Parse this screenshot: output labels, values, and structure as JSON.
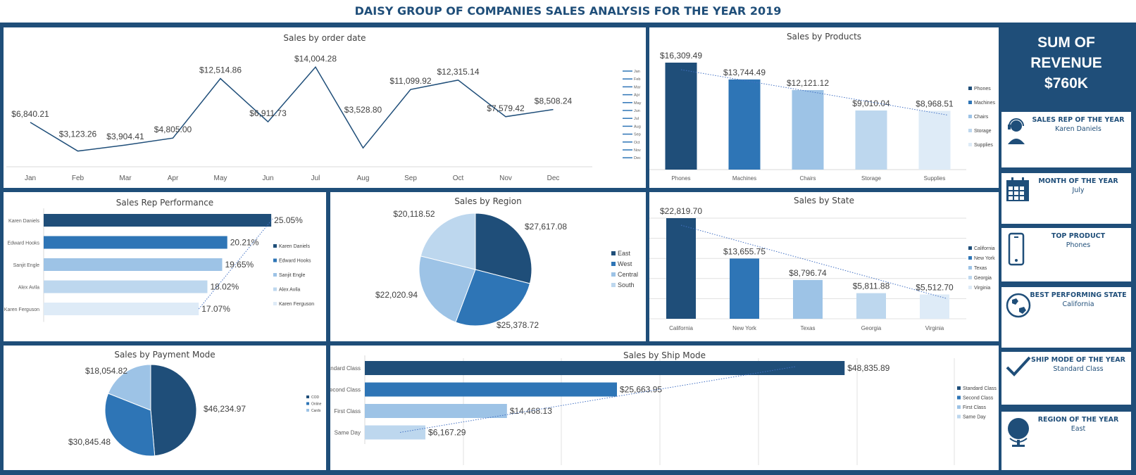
{
  "title": "DAISY GROUP OF COMPANIES SALES ANALYSIS FOR THE YEAR 2019",
  "colors": {
    "c1": "#1f4e79",
    "c2": "#2e75b6",
    "c3": "#9dc3e6",
    "c4": "#bdd7ee",
    "c5": "#deebf7"
  },
  "kpis": {
    "revenue": {
      "line1": "SUM OF",
      "line2": "REVENUE",
      "line3": "$760K"
    },
    "cards": [
      {
        "label": "SALES REP OF THE YEAR",
        "value": "Karen Daniels",
        "icon": "headset-icon"
      },
      {
        "label": "MONTH OF THE YEAR",
        "value": "July",
        "icon": "calendar-icon"
      },
      {
        "label": "TOP PRODUCT",
        "value": "Phones",
        "icon": "phone-icon"
      },
      {
        "label": "BEST PERFORMING STATE",
        "value": "California",
        "icon": "globe-map-icon"
      },
      {
        "label": "SHIP MODE OF THE YEAR",
        "value": "Standard Class",
        "icon": "checkmark-icon"
      },
      {
        "label": "REGION OF THE YEAR",
        "value": "East",
        "icon": "globe-icon"
      }
    ]
  },
  "chart_data": [
    {
      "id": "order-date",
      "type": "line",
      "title": "Sales by order date",
      "categories": [
        "Jan",
        "Feb",
        "Mar",
        "Apr",
        "May",
        "Jun",
        "Jul",
        "Aug",
        "Sep",
        "Oct",
        "Nov",
        "Dec"
      ],
      "values": [
        6840.21,
        3123.26,
        3904.41,
        4805.0,
        12514.86,
        6911.73,
        14004.28,
        3528.8,
        11099.92,
        12315.14,
        7579.42,
        8508.24
      ],
      "labels": [
        "$6,840.21",
        "$3,123.26",
        "$3,904.41",
        "$4,805.00",
        "$12,514.86",
        "$6,911.73",
        "$14,004.28",
        "$3,528.80",
        "$11,099.92",
        "$12,315.14",
        "$7,579.42",
        "$8,508.24"
      ],
      "legend": [
        "Jan",
        "Feb",
        "Mar",
        "Apr",
        "May",
        "Jun",
        "Jul",
        "Aug",
        "Sep",
        "Oct",
        "Nov",
        "Dec"
      ],
      "legend_position": "right"
    },
    {
      "id": "products",
      "type": "bar",
      "title": "Sales by Products",
      "categories": [
        "Phones",
        "Machines",
        "Chairs",
        "Storage",
        "Supplies"
      ],
      "values": [
        16309.49,
        13744.49,
        12121.12,
        9010.04,
        8968.51
      ],
      "labels": [
        "$16,309.49",
        "$13,744.49",
        "$12,121.12",
        "$9,010.04",
        "$8,968.51"
      ],
      "trendline": true,
      "legend_position": "right"
    },
    {
      "id": "sales-rep",
      "type": "bar",
      "orientation": "horizontal",
      "title": "Sales Rep Performance",
      "categories": [
        "Karen Daniels",
        "Edward Hooks",
        "Sanjit Engle",
        "Alex Avila",
        "Karen Ferguson"
      ],
      "values": [
        25.05,
        20.21,
        19.65,
        18.02,
        17.07
      ],
      "labels": [
        "25.05%",
        "20.21%",
        "19.65%",
        "18.02%",
        "17.07%"
      ],
      "trendline": true,
      "legend_position": "right"
    },
    {
      "id": "region",
      "type": "pie",
      "title": "Sales by Region",
      "categories": [
        "East",
        "West",
        "Central",
        "South"
      ],
      "values": [
        27617.08,
        25378.72,
        22020.94,
        20118.52
      ],
      "labels": [
        "$27,617.08",
        "$25,378.72",
        "$22,020.94",
        "$20,118.52"
      ],
      "legend_position": "right"
    },
    {
      "id": "state",
      "type": "bar",
      "title": "Sales by State",
      "categories": [
        "California",
        "New York",
        "Texas",
        "Georgia",
        "Virginia"
      ],
      "values": [
        22819.7,
        13655.75,
        8796.74,
        5811.88,
        5512.7
      ],
      "labels": [
        "$22,819.70",
        "$13,655.75",
        "$8,796.74",
        "$5,811.88",
        "$5,512.70"
      ],
      "trendline": true,
      "grid": true,
      "legend_position": "right"
    },
    {
      "id": "payment",
      "type": "pie",
      "title": "Sales by Payment Mode",
      "categories": [
        "COD",
        "Online",
        "Cards"
      ],
      "values": [
        46234.97,
        30845.48,
        18054.82
      ],
      "labels": [
        "$46,234.97",
        "$30,845.48",
        "$18,054.82"
      ],
      "legend_position": "right"
    },
    {
      "id": "ship-mode",
      "type": "bar",
      "orientation": "horizontal",
      "title": "Sales by Ship Mode",
      "categories": [
        "Standard Class",
        "Second Class",
        "First Class",
        "Same Day"
      ],
      "values": [
        48835.89,
        25663.95,
        14468.13,
        6167.29
      ],
      "labels": [
        "$48,835.89",
        "$25,663.95",
        "$14,468.13",
        "$6,167.29"
      ],
      "trendline": true,
      "grid": true,
      "legend_position": "right"
    }
  ]
}
